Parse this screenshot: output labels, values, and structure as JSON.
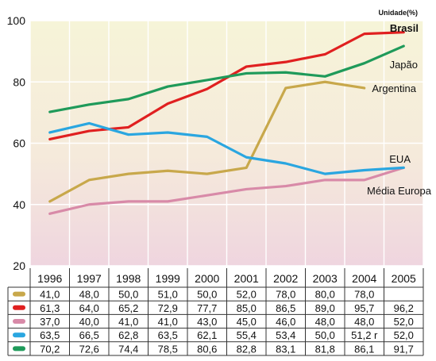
{
  "chart_data": {
    "type": "line",
    "unit_label": "Unidade(%)",
    "x": [
      "1996",
      "1997",
      "1998",
      "1999",
      "2000",
      "2001",
      "2002",
      "2003",
      "2004",
      "2005"
    ],
    "ylim": [
      20,
      100
    ],
    "yticks": [
      "20",
      "40",
      "60",
      "80",
      "100"
    ],
    "grid": true,
    "background": "vertical gradient from pale yellow (top) to pale pink (bottom)",
    "series": [
      {
        "name": "Argentina",
        "color": "#c8a84b",
        "values": [
          41.0,
          48.0,
          50.0,
          51.0,
          50.0,
          52.0,
          78.0,
          80.0,
          78.0,
          null
        ],
        "cells": [
          "41,0",
          "48,0",
          "50,0",
          "51,0",
          "50,0",
          "52,0",
          "78,0",
          "80,0",
          "78,0",
          ""
        ]
      },
      {
        "name": "Brasil",
        "color": "#e02020",
        "values": [
          61.3,
          64.0,
          65.2,
          72.9,
          77.7,
          85.0,
          86.5,
          89.0,
          95.7,
          96.2
        ],
        "cells": [
          "61,3",
          "64,0",
          "65,2",
          "72,9",
          "77,7",
          "85,0",
          "86,5",
          "89,0",
          "95,7",
          "96,2"
        ]
      },
      {
        "name": "Média Europa",
        "color": "#d88aa8",
        "values": [
          37.0,
          40.0,
          41.0,
          41.0,
          43.0,
          45.0,
          46.0,
          48.0,
          48.0,
          52.0
        ],
        "cells": [
          "37,0",
          "40,0",
          "41,0",
          "41,0",
          "43,0",
          "45,0",
          "46,0",
          "48,0",
          "48,0",
          "52,0"
        ]
      },
      {
        "name": "EUA",
        "color": "#2aa6e0",
        "values": [
          63.5,
          66.5,
          62.8,
          63.5,
          62.1,
          55.4,
          53.4,
          50.0,
          51.2,
          52.0
        ],
        "cells": [
          "63,5",
          "66,5",
          "62,8",
          "63,5",
          "62,1",
          "55,4",
          "53,4",
          "50,0",
          "51,2 r",
          "52,0"
        ]
      },
      {
        "name": "Japão",
        "color": "#1f9a5a",
        "values": [
          70.2,
          72.6,
          74.4,
          78.5,
          80.6,
          82.8,
          83.1,
          81.8,
          86.1,
          91.7
        ],
        "cells": [
          "70,2",
          "72,6",
          "74,4",
          "78,5",
          "80,6",
          "82,8",
          "83,1",
          "81,8",
          "86,1",
          "91,7"
        ]
      }
    ]
  }
}
